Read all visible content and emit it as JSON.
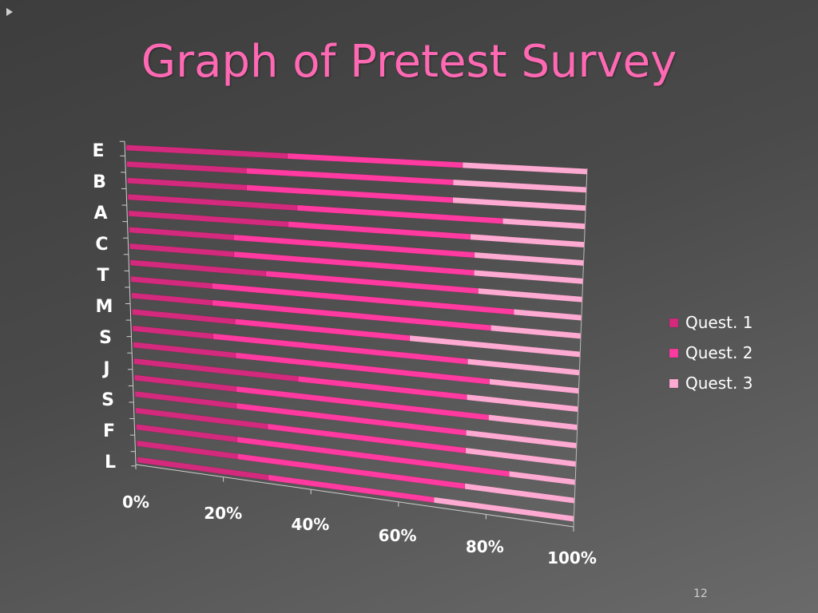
{
  "slide": {
    "title": "Graph of Pretest Survey",
    "page_number": "12"
  },
  "colors": {
    "background": "#4a4a4a",
    "title": "#ff69b4",
    "axis_text": "#ffffff"
  },
  "chart_data": {
    "type": "bar",
    "orientation": "horizontal",
    "stacked": "100%",
    "style": "3d-perspective",
    "title": "",
    "xlabel": "",
    "ylabel": "",
    "xlim": [
      0,
      100
    ],
    "x_ticks": [
      "0%",
      "20%",
      "40%",
      "60%",
      "80%",
      "100%"
    ],
    "y_tick_labels": [
      "E",
      "B",
      "A",
      "C",
      "T",
      "M",
      "S",
      "J",
      "S",
      "F",
      "L"
    ],
    "legend_position": "right",
    "series": [
      {
        "name": "Quest. 1",
        "color": "#d42a7e",
        "values": [
          35,
          26,
          26,
          37,
          35,
          23,
          23,
          30,
          18,
          18,
          23,
          18,
          23,
          37,
          23,
          23,
          30,
          23,
          23,
          30
        ]
      },
      {
        "name": "Quest. 2",
        "color": "#ff3aa0",
        "values": [
          38,
          45,
          45,
          45,
          40,
          53,
          53,
          47,
          67,
          62,
          39,
          57,
          57,
          38,
          57,
          52,
          45,
          62,
          52,
          38
        ]
      },
      {
        "name": "Quest. 3",
        "color": "#ffaad2",
        "values": [
          27,
          29,
          29,
          18,
          25,
          24,
          24,
          23,
          15,
          20,
          38,
          25,
          20,
          25,
          20,
          25,
          25,
          15,
          25,
          32
        ]
      }
    ]
  }
}
